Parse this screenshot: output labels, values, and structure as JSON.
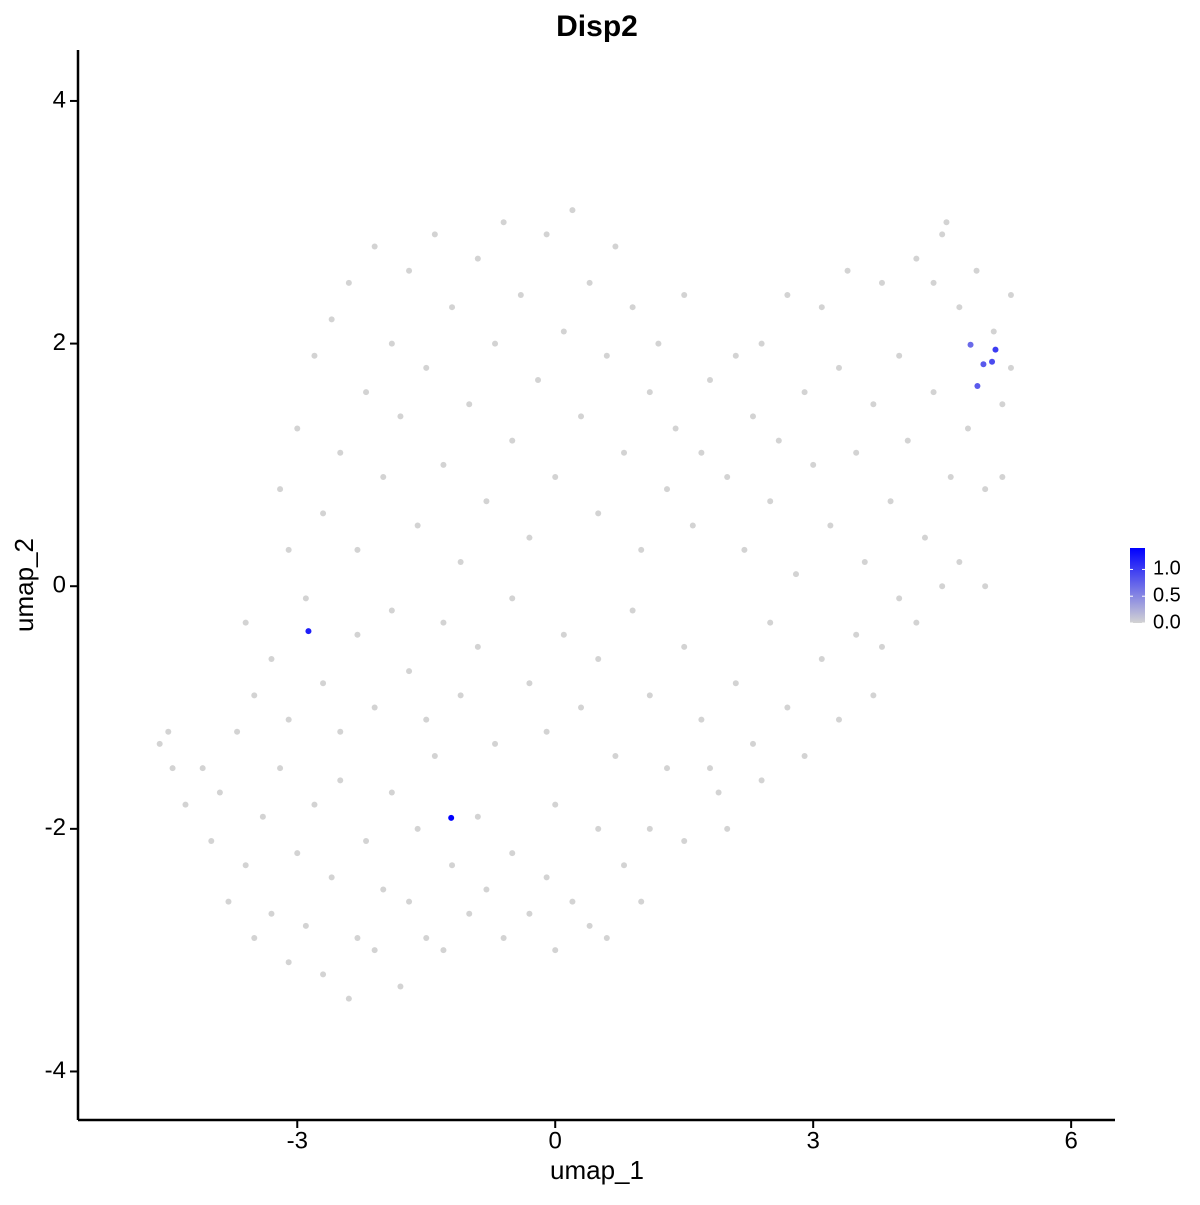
{
  "chart_data": {
    "type": "scatter",
    "title": "Disp2",
    "x_label": "umap_1",
    "y_label": "umap_2",
    "x": [
      -4.6,
      -4.5,
      -4.45,
      -4.3,
      -4.1,
      -4.0,
      -3.9,
      -3.8,
      -3.7,
      -3.6,
      -3.5,
      -3.4,
      -3.3,
      -3.2,
      -3.1,
      -3.0,
      -2.9,
      -2.8,
      -2.7,
      -2.6,
      -2.5,
      -2.4,
      -2.3,
      -2.2,
      -2.1,
      -2.0,
      -1.9,
      -1.8,
      -1.7,
      -1.6,
      -1.5,
      -1.4,
      -1.3,
      -1.2,
      -1.0,
      -0.9,
      -0.8,
      -0.6,
      -0.5,
      -0.3,
      -0.1,
      0.0,
      0.2,
      0.4,
      0.6,
      0.8,
      1.0,
      1.1,
      -3.6,
      -3.5,
      -3.3,
      -3.1,
      -2.9,
      -2.7,
      -2.5,
      -2.3,
      -2.1,
      -1.9,
      -1.7,
      -1.5,
      -1.3,
      -1.1,
      -0.9,
      -0.7,
      -0.5,
      -0.3,
      -0.1,
      0.1,
      0.3,
      0.5,
      0.7,
      0.9,
      1.1,
      1.3,
      1.5,
      1.7,
      1.9,
      2.1,
      2.3,
      2.5,
      2.7,
      2.9,
      3.1,
      3.3,
      3.5,
      3.7,
      0.0,
      0.5,
      1.5,
      2.0,
      1.8,
      2.4,
      -3.2,
      -3.0,
      -3.1,
      -2.8,
      -2.7,
      -2.6,
      -2.5,
      -2.4,
      -2.3,
      -2.2,
      -2.1,
      -2.0,
      -1.9,
      -1.8,
      -1.7,
      -1.6,
      -1.5,
      -1.4,
      -1.3,
      -1.2,
      -1.1,
      -1.0,
      -0.9,
      -0.8,
      -0.7,
      -0.6,
      -0.5,
      -0.4,
      -0.3,
      -0.2,
      -0.1,
      0.0,
      0.1,
      0.2,
      0.3,
      0.4,
      0.5,
      0.6,
      0.7,
      0.8,
      0.9,
      1.0,
      1.1,
      1.2,
      1.3,
      1.4,
      1.5,
      1.6,
      1.7,
      1.8,
      2.0,
      2.1,
      2.2,
      2.3,
      2.4,
      2.5,
      2.6,
      2.7,
      2.8,
      2.9,
      3.0,
      3.1,
      3.2,
      3.3,
      3.4,
      3.5,
      3.6,
      3.7,
      3.8,
      3.9,
      4.0,
      4.1,
      4.2,
      4.3,
      4.4,
      4.5,
      4.6,
      4.7,
      4.8,
      4.9,
      5.0,
      5.1,
      5.2,
      5.3,
      5.0,
      4.7,
      4.5,
      4.2,
      4.0,
      3.8,
      5.2,
      5.3,
      4.55,
      4.4,
      -2.87,
      -1.21,
      4.83,
      4.98,
      5.08,
      5.12,
      4.91
    ],
    "y": [
      -1.3,
      -1.2,
      -1.5,
      -1.8,
      -1.5,
      -2.1,
      -1.7,
      -2.6,
      -1.2,
      -2.3,
      -2.9,
      -1.9,
      -2.7,
      -1.5,
      -3.1,
      -2.2,
      -2.8,
      -1.8,
      -3.2,
      -2.4,
      -1.6,
      -3.4,
      -2.9,
      -2.1,
      -3.0,
      -2.5,
      -1.7,
      -3.3,
      -2.6,
      -2.0,
      -2.9,
      -1.4,
      -3.0,
      -2.3,
      -2.7,
      -1.9,
      -2.5,
      -2.9,
      -2.2,
      -2.7,
      -2.4,
      -3.0,
      -2.6,
      -2.8,
      -2.9,
      -2.3,
      -2.6,
      -2.0,
      -0.3,
      -0.9,
      -0.6,
      -1.1,
      -0.1,
      -0.8,
      -1.2,
      -0.4,
      -1.0,
      -0.2,
      -0.7,
      -1.1,
      -0.3,
      -0.9,
      -0.5,
      -1.3,
      -0.1,
      -0.8,
      -1.2,
      -0.4,
      -1.0,
      -0.6,
      -1.4,
      -0.2,
      -0.9,
      -1.5,
      -0.5,
      -1.1,
      -1.7,
      -0.8,
      -1.3,
      -0.3,
      -1.0,
      -1.4,
      -0.6,
      -1.1,
      -0.4,
      -0.9,
      -1.8,
      -2.0,
      -2.1,
      -2.0,
      -1.5,
      -1.6,
      0.8,
      1.3,
      0.3,
      1.9,
      0.6,
      2.2,
      1.1,
      2.5,
      0.3,
      1.6,
      2.8,
      0.9,
      2.0,
      1.4,
      2.6,
      0.5,
      1.8,
      2.9,
      1.0,
      2.3,
      0.2,
      1.5,
      2.7,
      0.7,
      2.0,
      3.0,
      1.2,
      2.4,
      0.4,
      1.7,
      2.9,
      0.9,
      2.1,
      3.1,
      1.4,
      2.5,
      0.6,
      1.9,
      2.8,
      1.1,
      2.3,
      0.3,
      1.6,
      2.0,
      0.8,
      1.3,
      2.4,
      0.5,
      1.1,
      1.7,
      0.9,
      1.9,
      0.3,
      1.4,
      2.0,
      0.7,
      1.2,
      2.4,
      0.1,
      1.6,
      1.0,
      2.3,
      0.5,
      1.8,
      2.6,
      1.1,
      0.2,
      1.5,
      2.5,
      0.7,
      1.9,
      1.2,
      2.7,
      0.4,
      1.6,
      2.9,
      0.9,
      2.3,
      1.3,
      2.6,
      0.8,
      2.1,
      1.5,
      2.4,
      0.0,
      0.2,
      0.0,
      -0.3,
      -0.1,
      -0.5,
      0.9,
      1.8,
      3.0,
      2.5,
      -0.37,
      -1.91,
      1.99,
      1.83,
      1.85,
      1.95,
      1.65
    ],
    "values": [
      0,
      0,
      0,
      0,
      0,
      0,
      0,
      0,
      0,
      0,
      0,
      0,
      0,
      0,
      0,
      0,
      0,
      0,
      0,
      0,
      0,
      0,
      0,
      0,
      0,
      0,
      0,
      0,
      0,
      0,
      0,
      0,
      0,
      0,
      0,
      0,
      0,
      0,
      0,
      0,
      0,
      0,
      0,
      0,
      0,
      0,
      0,
      0,
      0,
      0,
      0,
      0,
      0,
      0,
      0,
      0,
      0,
      0,
      0,
      0,
      0,
      0,
      0,
      0,
      0,
      0,
      0,
      0,
      0,
      0,
      0,
      0,
      0,
      0,
      0,
      0,
      0,
      0,
      0,
      0,
      0,
      0,
      0,
      0,
      0,
      0,
      0,
      0,
      0,
      0,
      0,
      0,
      0,
      0,
      0,
      0,
      0,
      0,
      0,
      0,
      0,
      0,
      0,
      0,
      0,
      0,
      0,
      0,
      0,
      0,
      0,
      0,
      0,
      0,
      0,
      0,
      0,
      0,
      0,
      0,
      0,
      0,
      0,
      0,
      0,
      0,
      0,
      0,
      0,
      0,
      0,
      0,
      0,
      0,
      0,
      0,
      0,
      0,
      0,
      0,
      0,
      0,
      0,
      0,
      0,
      0,
      0,
      0,
      0,
      0,
      0,
      0,
      0,
      0,
      0,
      0,
      0,
      0,
      0,
      0,
      0,
      0,
      0,
      0,
      0,
      0,
      0,
      0,
      0,
      0,
      0,
      0,
      0,
      0,
      0,
      0,
      0,
      0,
      0,
      0,
      0,
      0,
      0,
      0,
      0,
      0,
      1.2,
      1.4,
      0.7,
      0.8,
      0.9,
      1.0,
      0.8
    ],
    "color_low": "#d3d3d3",
    "color_high": "#0000ff",
    "color_lim": [
      0,
      1.4
    ],
    "legend_ticks": [
      {
        "value": 0,
        "label": "0.0"
      },
      0.5,
      {
        "value": 1,
        "label": "1.0"
      }
    ],
    "xlim": [
      -5.55,
      6.51
    ],
    "ylim": [
      -4.4,
      4.42
    ],
    "xticks": [
      -3,
      0,
      3,
      6
    ],
    "yticks": [
      -4,
      -2,
      0,
      2,
      4
    ]
  }
}
